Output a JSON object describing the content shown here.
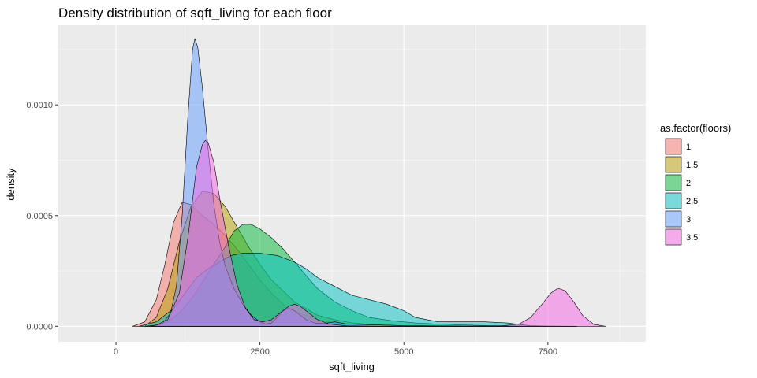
{
  "chart_data": {
    "type": "area",
    "title": "Density distribution of sqft_living for each floor",
    "xlabel": "sqft_living",
    "ylabel": "density",
    "xlim": [
      -1000,
      9200
    ],
    "ylim": [
      -7e-05,
      0.00136
    ],
    "x_ticks": [
      0,
      2500,
      5000,
      7500
    ],
    "x_minor_ticks": [
      1250,
      3750,
      6250,
      8750
    ],
    "x_tick_labels": [
      "0",
      "2500",
      "5000",
      "7500"
    ],
    "y_ticks": [
      0,
      0.0005,
      0.001
    ],
    "y_minor_ticks": [
      0.00025,
      0.00075,
      0.00125
    ],
    "y_tick_labels": [
      "0.0000",
      "0.0005",
      "0.0010"
    ],
    "grid": true,
    "legend": {
      "title": "as.factor(floors)",
      "position": "right"
    },
    "series": [
      {
        "name": "1",
        "color": "#F8766D",
        "x": [
          290,
          500,
          700,
          850,
          1000,
          1150,
          1300,
          1500,
          1700,
          1900,
          2100,
          2300,
          2500,
          2700,
          2900,
          3100,
          3300,
          3500,
          3700,
          4000,
          4300,
          4600,
          5000,
          5500,
          6000,
          6500,
          7000,
          8000
        ],
        "y": [
          0,
          2e-05,
          0.00012,
          0.00028,
          0.00047,
          0.00056,
          0.00055,
          0.0005,
          0.00046,
          0.00041,
          0.00035,
          0.00028,
          0.00021,
          0.00015,
          0.0001,
          7e-05,
          5e-05,
          3e-05,
          2e-05,
          1.2e-05,
          6e-06,
          4e-06,
          2e-06,
          1e-06,
          5e-07,
          2e-07,
          1e-07,
          0
        ]
      },
      {
        "name": "1.5",
        "color": "#B79F00",
        "x": [
          500,
          700,
          900,
          1100,
          1300,
          1500,
          1700,
          1900,
          2100,
          2300,
          2500,
          2700,
          2900,
          3100,
          3300,
          3500,
          3800,
          4100,
          4500,
          5000,
          5500,
          6000,
          7000,
          8000
        ],
        "y": [
          0,
          4e-05,
          0.00017,
          0.00038,
          0.00054,
          0.00061,
          0.0006,
          0.00054,
          0.00045,
          0.00036,
          0.00028,
          0.00021,
          0.00016,
          0.00011,
          8e-05,
          5e-05,
          3e-05,
          1.5e-05,
          7e-06,
          3e-06,
          1.5e-06,
          8e-07,
          2e-07,
          0
        ]
      },
      {
        "name": "2",
        "color": "#00BA38",
        "x": [
          600,
          900,
          1100,
          1300,
          1500,
          1700,
          1900,
          2050,
          2200,
          2350,
          2500,
          2700,
          2900,
          3100,
          3300,
          3500,
          3800,
          4100,
          4400,
          4800,
          5200,
          5600,
          6000,
          6500,
          7000,
          7500,
          8000
        ],
        "y": [
          0,
          2e-05,
          6e-05,
          0.00012,
          0.0002,
          0.00028,
          0.00036,
          0.00043,
          0.00046,
          0.00046,
          0.00044,
          0.0004,
          0.00035,
          0.00029,
          0.00023,
          0.00017,
          0.00011,
          7e-05,
          4e-05,
          2.5e-05,
          1.5e-05,
          1e-05,
          6e-06,
          3e-06,
          1.5e-06,
          5e-07,
          0
        ]
      },
      {
        "name": "2.5",
        "color": "#00BFC4",
        "x": [
          400,
          700,
          1000,
          1200,
          1400,
          1600,
          1800,
          2000,
          2200,
          2500,
          2800,
          3100,
          3300,
          3500,
          3800,
          4100,
          4400,
          4700,
          5000,
          5200,
          5400,
          5600,
          6000,
          6400,
          6800,
          7000,
          7200,
          7400,
          7600,
          8000
        ],
        "y": [
          0,
          2e-05,
          8e-05,
          0.00015,
          0.00022,
          0.00026,
          0.00029,
          0.00032,
          0.00033,
          0.00033,
          0.00032,
          0.00029,
          0.00026,
          0.00022,
          0.00018,
          0.00014,
          0.00012,
          0.0001,
          7e-05,
          4e-05,
          3e-05,
          2e-05,
          2e-05,
          2e-05,
          1.5e-05,
          8e-06,
          3e-06,
          1e-06,
          5e-07,
          0
        ]
      },
      {
        "name": "3",
        "color": "#619CFF",
        "x": [
          600,
          800,
          950,
          1050,
          1150,
          1250,
          1330,
          1370,
          1420,
          1500,
          1600,
          1700,
          1800,
          1900,
          2050,
          2200,
          2350,
          2500,
          2600,
          2700,
          2800,
          2900,
          3000,
          3100,
          3200,
          3300,
          3450,
          3600,
          3800,
          4000,
          4500,
          5000,
          5500,
          6000,
          6500,
          7000
        ],
        "y": [
          0,
          1e-05,
          6e-05,
          0.00018,
          0.0005,
          0.00095,
          0.00125,
          0.0013,
          0.00126,
          0.00108,
          0.0008,
          0.00055,
          0.00038,
          0.00027,
          0.00017,
          0.0001,
          5e-05,
          2e-05,
          1e-05,
          1.5e-05,
          4e-05,
          7e-05,
          8e-05,
          7e-05,
          5e-05,
          3e-05,
          1.5e-05,
          1.2e-05,
          2e-05,
          1e-05,
          6e-06,
          3e-06,
          2e-06,
          1e-06,
          5e-07,
          0
        ]
      },
      {
        "name": "3.5",
        "color": "#F564E3",
        "x": [
          500,
          700,
          900,
          1100,
          1250,
          1400,
          1500,
          1550,
          1600,
          1700,
          1800,
          1950,
          2100,
          2250,
          2400,
          2550,
          2700,
          2850,
          3000,
          3100,
          3200,
          3350,
          3500,
          3700,
          4000,
          4500,
          5000,
          6000,
          6700,
          7000,
          7200,
          7400,
          7550,
          7650,
          7700,
          7800,
          7950,
          8100,
          8300,
          8500
        ],
        "y": [
          0,
          5e-06,
          3e-05,
          0.00015,
          0.0004,
          0.00072,
          0.00082,
          0.00084,
          0.00083,
          0.00074,
          0.00058,
          0.00037,
          0.00019,
          8e-05,
          3e-05,
          2e-05,
          3e-05,
          6e-05,
          9e-05,
          0.0001,
          9e-05,
          6e-05,
          3e-05,
          1e-05,
          2e-06,
          0,
          0,
          0,
          2e-06,
          1e-05,
          4e-05,
          0.0001,
          0.00015,
          0.000168,
          0.00017,
          0.00016,
          0.00011,
          5e-05,
          8e-06,
          0
        ]
      }
    ]
  }
}
